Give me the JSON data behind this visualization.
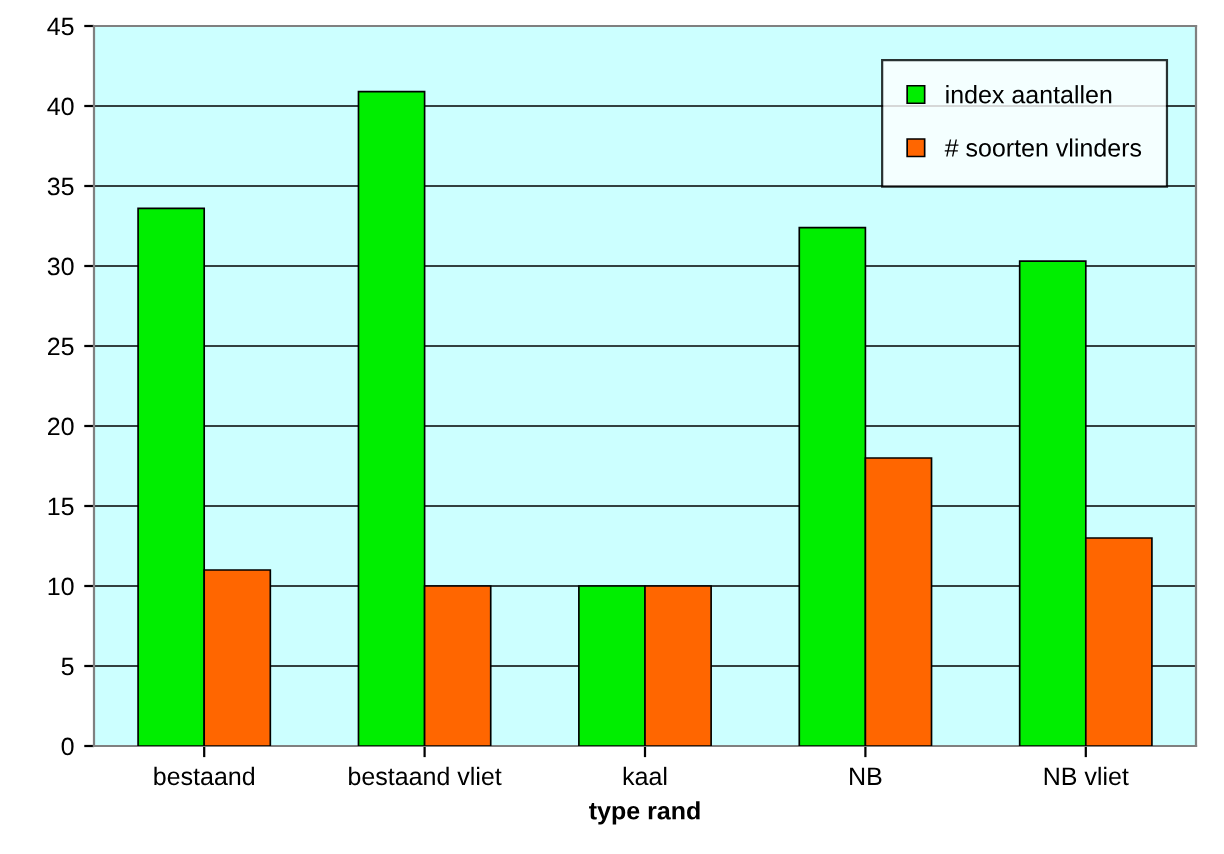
{
  "chart_data": {
    "type": "bar",
    "xlabel": "type rand",
    "categories": [
      "bestaand",
      "bestaand vliet",
      "kaal",
      "NB",
      "NB vliet"
    ],
    "series": [
      {
        "name": "index aantallen",
        "color": "#00ee00",
        "values": [
          33.6,
          40.9,
          10,
          32.4,
          30.3
        ]
      },
      {
        "name": "# soorten vlinders",
        "color": "#ff6600",
        "values": [
          11,
          10,
          10,
          18,
          13
        ]
      }
    ],
    "ylim": [
      0,
      45
    ],
    "yticks": [
      0,
      5,
      10,
      15,
      20,
      25,
      30,
      35,
      40,
      45
    ],
    "grid": "y",
    "legend": "top right"
  }
}
